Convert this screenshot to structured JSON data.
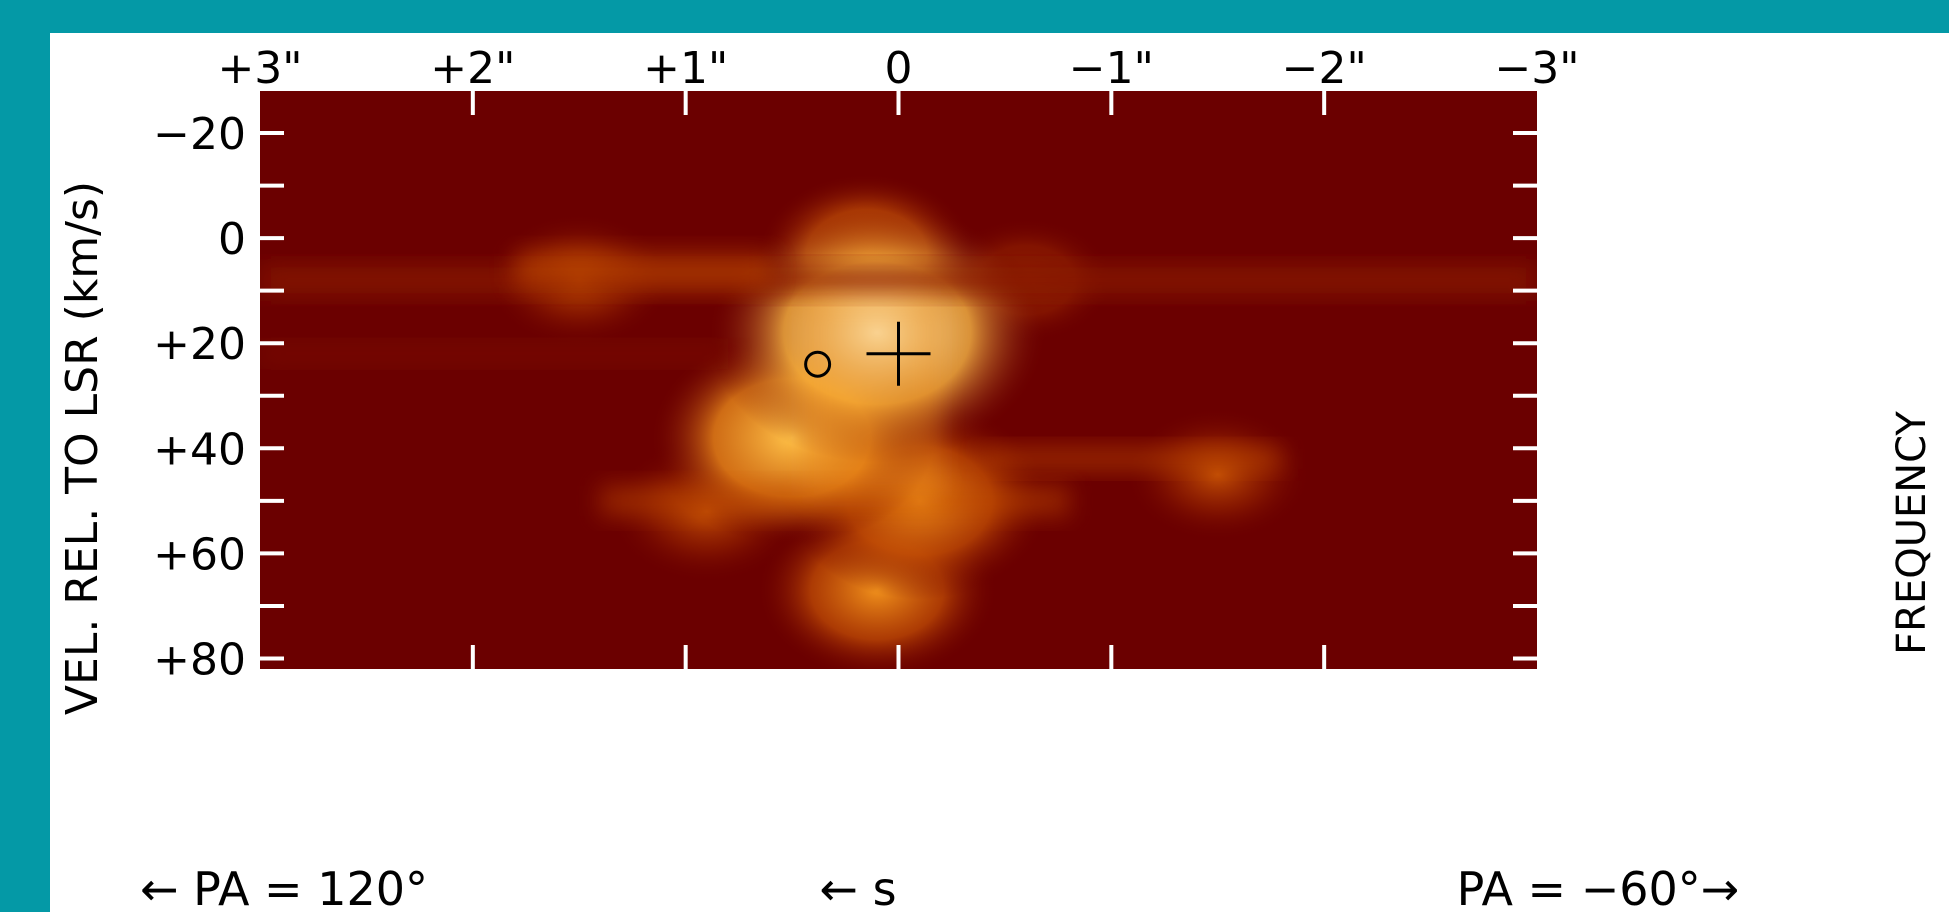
{
  "chart_data": {
    "type": "heatmap",
    "title": "",
    "colormap": [
      "#6b0000",
      "#8a1a00",
      "#c24e05",
      "#f0901c",
      "#ffc24a",
      "#fff6cf"
    ],
    "background_color": "#0499a6",
    "x_axis": {
      "label": "",
      "position": "top",
      "range": [
        3,
        -3
      ],
      "ticks": [
        {
          "value": 3,
          "label": "+3\""
        },
        {
          "value": 2,
          "label": "+2\""
        },
        {
          "value": 1,
          "label": "+1\""
        },
        {
          "value": 0,
          "label": "0"
        },
        {
          "value": -1,
          "label": "−1\""
        },
        {
          "value": -2,
          "label": "−2\""
        },
        {
          "value": -3,
          "label": "−3\""
        }
      ]
    },
    "y_axis": {
      "label": "VEL. REL. TO LSR  (km/s)",
      "range": [
        -28,
        82
      ],
      "inverted": true,
      "ticks": [
        {
          "value": -20,
          "label": "−20"
        },
        {
          "value": 0,
          "label": "0"
        },
        {
          "value": 20,
          "label": "+20"
        },
        {
          "value": 40,
          "label": "+40"
        },
        {
          "value": 60,
          "label": "+60"
        },
        {
          "value": 80,
          "label": "+80"
        }
      ],
      "minor_ticks": [
        -10,
        10,
        30,
        50,
        70
      ]
    },
    "right_axis_label": "FREQUENCY",
    "bottom_labels": {
      "left": "← PA = 120°",
      "center": "← s",
      "right": "PA = −60°→"
    },
    "markers": [
      {
        "type": "plus",
        "x": 0.0,
        "y": 22
      },
      {
        "type": "circle",
        "x": 0.38,
        "y": 24
      }
    ],
    "emission_features": [
      {
        "x": 0.1,
        "y": 18,
        "intensity": 1.0,
        "note": "brightest peak"
      },
      {
        "x": 0.5,
        "y": 38,
        "intensity": 0.75
      },
      {
        "x": -0.1,
        "y": 50,
        "intensity": 0.65
      },
      {
        "x": 0.1,
        "y": 67,
        "intensity": 0.55
      },
      {
        "x": 0.15,
        "y": 3,
        "intensity": 0.45
      },
      {
        "x": 1.5,
        "y": 8,
        "intensity": 0.3
      },
      {
        "x": -0.6,
        "y": 8,
        "intensity": 0.25
      },
      {
        "x": -1.5,
        "y": 45,
        "intensity": 0.3
      },
      {
        "x": 0.9,
        "y": 52,
        "intensity": 0.35
      }
    ]
  }
}
